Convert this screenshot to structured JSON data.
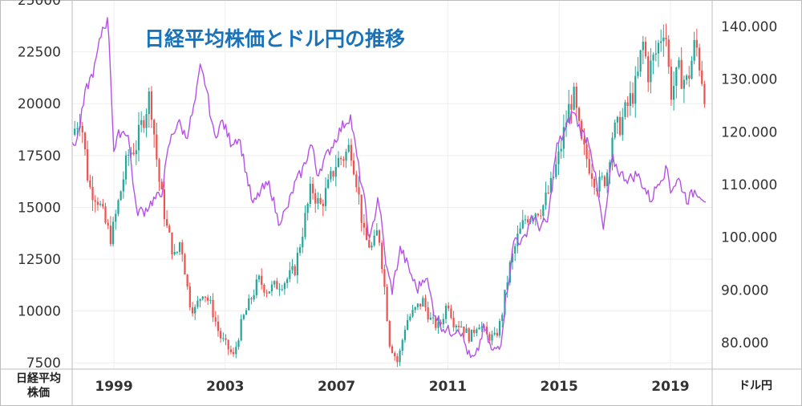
{
  "chart_data": {
    "type": "candlestick+line",
    "title": "日経平均株価とドル円の推移",
    "left_axis": {
      "label_lines": [
        "日経平均",
        "株価"
      ],
      "ticks": [
        7500,
        10000,
        12500,
        15000,
        17500,
        20000,
        22500,
        25000
      ],
      "tick_labels": [
        "7500",
        "10000",
        "12500",
        "15000",
        "17500",
        "20000",
        "22500",
        "25000"
      ],
      "ylim": [
        7200,
        25000
      ]
    },
    "right_axis": {
      "label": "ドル円",
      "ticks": [
        80,
        90,
        100,
        110,
        120,
        130,
        140
      ],
      "tick_labels": [
        "80.000",
        "90.000",
        "100.000",
        "110.000",
        "120.000",
        "130.000",
        "140.000"
      ],
      "ylim": [
        75,
        145
      ]
    },
    "x_axis": {
      "tick_values": [
        1999,
        2003,
        2007,
        2011,
        2015,
        2019
      ],
      "tick_labels": [
        "1999",
        "2003",
        "2007",
        "2011",
        "2015",
        "2019"
      ],
      "xlim": [
        1997.5,
        2020.5
      ]
    },
    "grid": true,
    "nikkei_points": [
      [
        1997.5,
        18500
      ],
      [
        1997.8,
        19500
      ],
      [
        1998.1,
        16000
      ],
      [
        1998.4,
        15500
      ],
      [
        1998.7,
        14200
      ],
      [
        1998.9,
        13500
      ],
      [
        1999.2,
        15500
      ],
      [
        1999.5,
        17500
      ],
      [
        1999.8,
        18000
      ],
      [
        2000.1,
        19500
      ],
      [
        2000.3,
        20500
      ],
      [
        2000.6,
        16500
      ],
      [
        2000.9,
        14000
      ],
      [
        2001.2,
        12500
      ],
      [
        2001.4,
        13500
      ],
      [
        2001.7,
        10500
      ],
      [
        2001.9,
        10000
      ],
      [
        2002.2,
        11000
      ],
      [
        2002.5,
        10200
      ],
      [
        2002.8,
        8800
      ],
      [
        2003.1,
        8200
      ],
      [
        2003.3,
        7800
      ],
      [
        2003.6,
        9500
      ],
      [
        2003.9,
        10500
      ],
      [
        2004.2,
        11500
      ],
      [
        2004.5,
        11000
      ],
      [
        2004.8,
        11200
      ],
      [
        2005.2,
        11500
      ],
      [
        2005.5,
        12000
      ],
      [
        2005.8,
        14000
      ],
      [
        2006.1,
        16000
      ],
      [
        2006.4,
        15000
      ],
      [
        2006.7,
        16000
      ],
      [
        2007.0,
        17200
      ],
      [
        2007.3,
        17500
      ],
      [
        2007.5,
        18000
      ],
      [
        2007.7,
        16500
      ],
      [
        2008.0,
        13500
      ],
      [
        2008.3,
        13000
      ],
      [
        2008.5,
        14000
      ],
      [
        2008.7,
        11500
      ],
      [
        2008.9,
        8500
      ],
      [
        2009.2,
        7500
      ],
      [
        2009.5,
        9500
      ],
      [
        2009.8,
        10000
      ],
      [
        2010.1,
        10500
      ],
      [
        2010.4,
        9500
      ],
      [
        2010.7,
        9200
      ],
      [
        2011.0,
        10500
      ],
      [
        2011.2,
        9500
      ],
      [
        2011.5,
        9300
      ],
      [
        2011.8,
        8700
      ],
      [
        2012.1,
        9500
      ],
      [
        2012.4,
        8800
      ],
      [
        2012.7,
        8700
      ],
      [
        2012.9,
        9500
      ],
      [
        2013.2,
        12000
      ],
      [
        2013.5,
        13500
      ],
      [
        2013.8,
        14500
      ],
      [
        2014.1,
        14800
      ],
      [
        2014.4,
        15000
      ],
      [
        2014.7,
        16000
      ],
      [
        2015.0,
        17500
      ],
      [
        2015.3,
        19500
      ],
      [
        2015.5,
        20500
      ],
      [
        2015.8,
        18000
      ],
      [
        2016.1,
        17000
      ],
      [
        2016.4,
        16000
      ],
      [
        2016.7,
        16500
      ],
      [
        2016.9,
        18500
      ],
      [
        2017.2,
        19000
      ],
      [
        2017.5,
        20000
      ],
      [
        2017.8,
        21000
      ],
      [
        2018.0,
        23000
      ],
      [
        2018.2,
        21500
      ],
      [
        2018.5,
        22500
      ],
      [
        2018.8,
        24000
      ],
      [
        2019.0,
        20500
      ],
      [
        2019.3,
        21500
      ],
      [
        2019.6,
        21000
      ],
      [
        2019.9,
        23000
      ],
      [
        2020.1,
        21500
      ],
      [
        2020.3,
        20000
      ]
    ],
    "usdjpy_points": [
      [
        1997.5,
        117
      ],
      [
        1997.7,
        119
      ],
      [
        1998.0,
        128
      ],
      [
        1998.3,
        132
      ],
      [
        1998.6,
        140
      ],
      [
        1998.8,
        141
      ],
      [
        1999.0,
        116
      ],
      [
        1999.2,
        120
      ],
      [
        1999.5,
        120
      ],
      [
        1999.8,
        105
      ],
      [
        2000.1,
        105
      ],
      [
        2000.4,
        107
      ],
      [
        2000.7,
        108
      ],
      [
        2001.0,
        118
      ],
      [
        2001.3,
        122
      ],
      [
        2001.6,
        119
      ],
      [
        2001.9,
        125
      ],
      [
        2002.1,
        132
      ],
      [
        2002.3,
        129
      ],
      [
        2002.6,
        119
      ],
      [
        2002.9,
        122
      ],
      [
        2003.2,
        118
      ],
      [
        2003.5,
        119
      ],
      [
        2003.8,
        111
      ],
      [
        2004.0,
        106
      ],
      [
        2004.3,
        109
      ],
      [
        2004.6,
        110
      ],
      [
        2004.9,
        103
      ],
      [
        2005.2,
        105
      ],
      [
        2005.5,
        110
      ],
      [
        2005.8,
        113
      ],
      [
        2006.1,
        118
      ],
      [
        2006.3,
        112
      ],
      [
        2006.6,
        115
      ],
      [
        2006.9,
        118
      ],
      [
        2007.2,
        121
      ],
      [
        2007.5,
        123
      ],
      [
        2007.8,
        113
      ],
      [
        2008.0,
        107
      ],
      [
        2008.2,
        99
      ],
      [
        2008.5,
        108
      ],
      [
        2008.8,
        94
      ],
      [
        2009.0,
        90
      ],
      [
        2009.3,
        98
      ],
      [
        2009.6,
        94
      ],
      [
        2009.9,
        90
      ],
      [
        2010.2,
        93
      ],
      [
        2010.5,
        86
      ],
      [
        2010.8,
        83
      ],
      [
        2011.1,
        82
      ],
      [
        2011.4,
        83
      ],
      [
        2011.6,
        80
      ],
      [
        2011.8,
        77
      ],
      [
        2012.0,
        77
      ],
      [
        2012.3,
        83
      ],
      [
        2012.6,
        78
      ],
      [
        2012.9,
        80
      ],
      [
        2013.1,
        89
      ],
      [
        2013.4,
        100
      ],
      [
        2013.7,
        99
      ],
      [
        2014.0,
        104
      ],
      [
        2014.3,
        102
      ],
      [
        2014.6,
        103
      ],
      [
        2014.9,
        117
      ],
      [
        2015.2,
        120
      ],
      [
        2015.5,
        124
      ],
      [
        2015.8,
        120
      ],
      [
        2016.1,
        118
      ],
      [
        2016.4,
        108
      ],
      [
        2016.6,
        101
      ],
      [
        2016.9,
        115
      ],
      [
        2017.2,
        112
      ],
      [
        2017.5,
        111
      ],
      [
        2017.8,
        112
      ],
      [
        2018.1,
        109
      ],
      [
        2018.3,
        107
      ],
      [
        2018.6,
        111
      ],
      [
        2018.9,
        113
      ],
      [
        2019.0,
        109
      ],
      [
        2019.3,
        111
      ],
      [
        2019.6,
        107
      ],
      [
        2019.9,
        109
      ],
      [
        2020.1,
        108
      ],
      [
        2020.3,
        107
      ]
    ]
  }
}
